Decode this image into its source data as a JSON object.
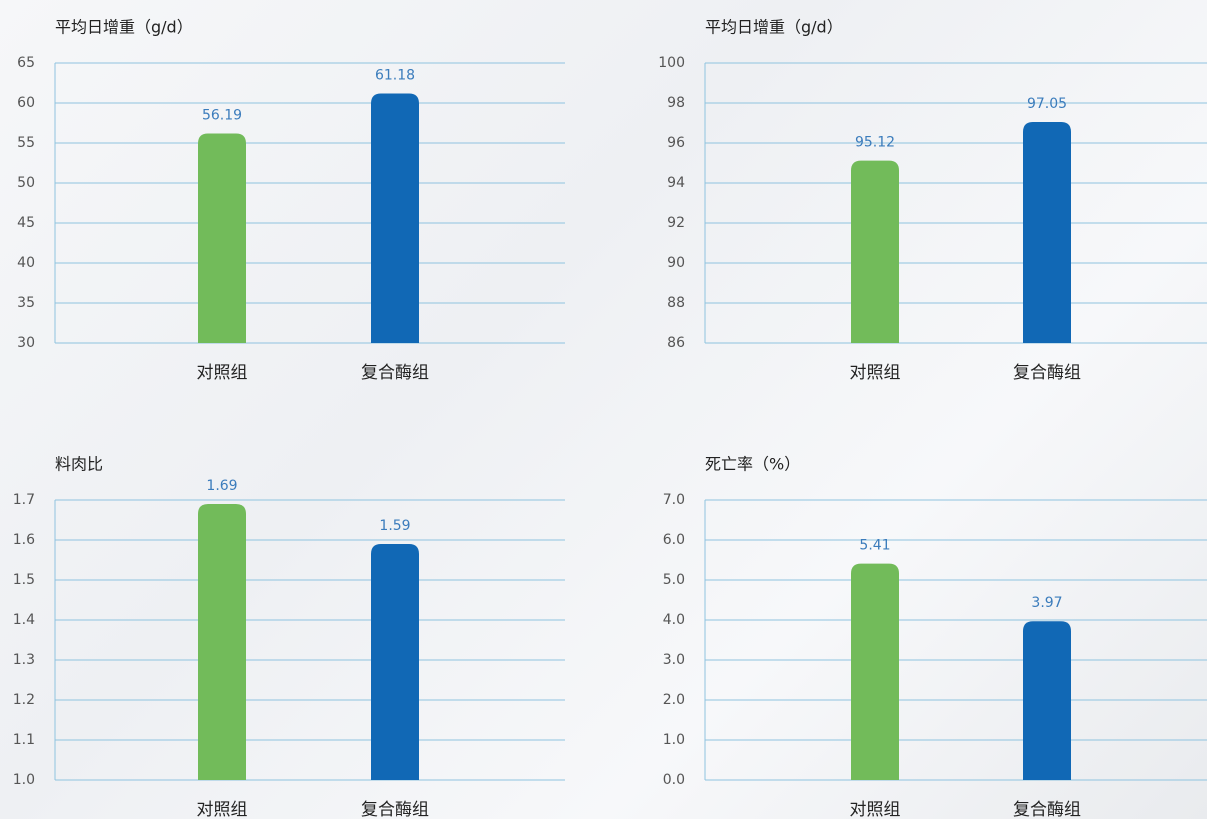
{
  "chart_data": [
    {
      "type": "bar",
      "title": "平均日增重（g/d）",
      "categories": [
        "对照组",
        "复合酶组"
      ],
      "values": [
        56.19,
        61.18
      ],
      "colors": [
        "#72bb5a",
        "#1168b5"
      ],
      "ylim": [
        30,
        65
      ],
      "yticks": [
        30,
        35,
        40,
        45,
        50,
        55,
        60,
        65
      ],
      "grid": true
    },
    {
      "type": "bar",
      "title": "平均日增重（g/d）",
      "categories": [
        "对照组",
        "复合酶组"
      ],
      "values": [
        95.12,
        97.05
      ],
      "colors": [
        "#72bb5a",
        "#1168b5"
      ],
      "ylim": [
        86,
        100
      ],
      "yticks": [
        86,
        88,
        90,
        92,
        94,
        96,
        98,
        100
      ],
      "grid": true
    },
    {
      "type": "bar",
      "title": "料肉比",
      "categories": [
        "对照组",
        "复合酶组"
      ],
      "values": [
        1.69,
        1.59
      ],
      "colors": [
        "#72bb5a",
        "#1168b5"
      ],
      "ylim": [
        1.0,
        1.7
      ],
      "yticks": [
        {
          "value": 1.0,
          "label": "1.0"
        },
        1.1,
        1.2,
        1.3,
        1.4,
        1.5,
        1.6,
        1.7
      ],
      "grid": true
    },
    {
      "type": "bar",
      "title": "死亡率（%）",
      "categories": [
        "对照组",
        "复合酶组"
      ],
      "values": [
        5.41,
        3.97
      ],
      "colors": [
        "#72bb5a",
        "#1168b5"
      ],
      "ylim": [
        0,
        7
      ],
      "yticks": [
        {
          "value": 0,
          "label": "0.0"
        },
        {
          "value": 1,
          "label": "1.0"
        },
        {
          "value": 2,
          "label": "2.0"
        },
        {
          "value": 3,
          "label": "3.0"
        },
        {
          "value": 4,
          "label": "4.0"
        },
        {
          "value": 5,
          "label": "5.0"
        },
        {
          "value": 6,
          "label": "6.0"
        },
        {
          "value": 7,
          "label": "7.0"
        }
      ],
      "grid": true
    }
  ]
}
